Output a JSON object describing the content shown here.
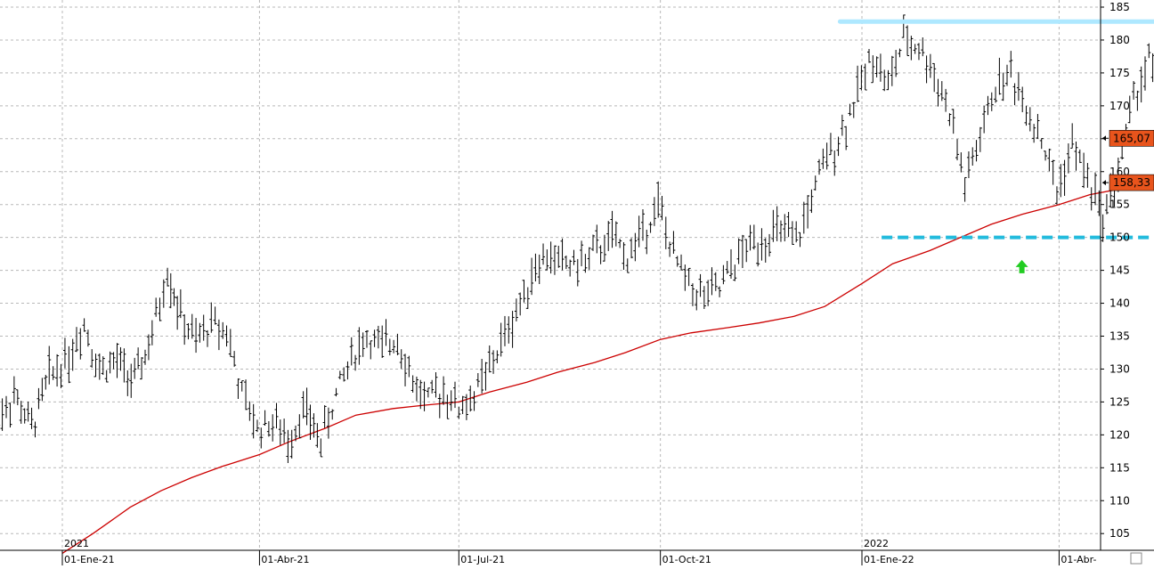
{
  "chart_data": {
    "type": "line",
    "subtype": "ohlc-bars-with-moving-average",
    "ylim": [
      102,
      186
    ],
    "y_ticks": [
      105,
      110,
      115,
      120,
      125,
      130,
      135,
      140,
      145,
      150,
      155,
      160,
      165,
      170,
      175,
      180,
      185
    ],
    "x_ticks": [
      {
        "label": "01-Ene-21",
        "date": "2021-01-01"
      },
      {
        "label": "01-Abr-21",
        "date": "2021-04-01"
      },
      {
        "label": "01-Jul-21",
        "date": "2021-07-01"
      },
      {
        "label": "01-Oct-21",
        "date": "2021-10-01"
      },
      {
        "label": "01-Ene-22",
        "date": "2022-01-01"
      },
      {
        "label": "01-Abr-",
        "date": "2022-04-01"
      }
    ],
    "year_labels": [
      {
        "label": "2021",
        "date": "2021-01-01"
      },
      {
        "label": "2022",
        "date": "2022-01-01"
      }
    ],
    "grid": true,
    "price_series": {
      "color": "#000000",
      "points": [
        [
          "2020-12-01",
          122
        ],
        [
          "2020-12-10",
          126
        ],
        [
          "2020-12-18",
          121
        ],
        [
          "2020-12-26",
          129
        ],
        [
          "2021-01-04",
          132
        ],
        [
          "2021-01-11",
          137
        ],
        [
          "2021-01-18",
          130
        ],
        [
          "2021-01-26",
          131
        ],
        [
          "2021-02-03",
          128
        ],
        [
          "2021-02-11",
          135
        ],
        [
          "2021-02-18",
          145
        ],
        [
          "2021-02-24",
          138
        ],
        [
          "2021-03-03",
          134
        ],
        [
          "2021-03-10",
          137
        ],
        [
          "2021-03-17",
          136
        ],
        [
          "2021-03-24",
          126
        ],
        [
          "2021-03-31",
          121
        ],
        [
          "2021-04-07",
          122
        ],
        [
          "2021-04-14",
          119
        ],
        [
          "2021-04-21",
          124
        ],
        [
          "2021-04-29",
          119
        ],
        [
          "2021-05-06",
          126
        ],
        [
          "2021-05-13",
          132
        ],
        [
          "2021-05-20",
          135
        ],
        [
          "2021-05-27",
          133
        ],
        [
          "2021-06-03",
          135
        ],
        [
          "2021-06-10",
          128
        ],
        [
          "2021-06-17",
          125
        ],
        [
          "2021-06-24",
          127
        ],
        [
          "2021-07-01",
          124
        ],
        [
          "2021-07-08",
          126
        ],
        [
          "2021-07-15",
          130
        ],
        [
          "2021-07-22",
          135
        ],
        [
          "2021-07-29",
          140
        ],
        [
          "2021-08-05",
          146
        ],
        [
          "2021-08-12",
          147
        ],
        [
          "2021-08-19",
          146
        ],
        [
          "2021-08-26",
          146
        ],
        [
          "2021-09-02",
          148
        ],
        [
          "2021-09-09",
          150
        ],
        [
          "2021-09-16",
          147
        ],
        [
          "2021-09-23",
          151
        ],
        [
          "2021-09-30",
          155
        ],
        [
          "2021-10-07",
          147
        ],
        [
          "2021-10-14",
          143
        ],
        [
          "2021-10-21",
          141
        ],
        [
          "2021-10-28",
          142
        ],
        [
          "2021-11-04",
          146
        ],
        [
          "2021-11-11",
          149
        ],
        [
          "2021-11-18",
          150
        ],
        [
          "2021-11-25",
          151
        ],
        [
          "2021-12-02",
          149
        ],
        [
          "2021-12-09",
          156
        ],
        [
          "2021-12-16",
          162
        ],
        [
          "2021-12-23",
          166
        ],
        [
          "2021-12-30",
          172
        ],
        [
          "2022-01-06",
          178
        ],
        [
          "2022-01-13",
          173
        ],
        [
          "2022-01-20",
          180
        ],
        [
          "2022-01-27",
          179
        ],
        [
          "2022-02-03",
          175
        ],
        [
          "2022-02-10",
          169
        ],
        [
          "2022-02-17",
          158
        ],
        [
          "2022-02-24",
          165
        ],
        [
          "2022-03-03",
          173
        ],
        [
          "2022-03-10",
          175
        ],
        [
          "2022-03-17",
          170
        ],
        [
          "2022-03-24",
          165
        ],
        [
          "2022-03-31",
          157
        ],
        [
          "2022-04-07",
          164
        ],
        [
          "2022-04-14",
          159
        ],
        [
          "2022-04-21",
          153
        ],
        [
          "2022-04-28",
          160
        ],
        [
          "2022-05-05",
          171
        ],
        [
          "2022-05-12",
          177
        ],
        [
          "2022-05-19",
          171
        ],
        [
          "2022-05-26",
          165.07
        ]
      ]
    },
    "moving_average": {
      "color": "#cc0000",
      "points": [
        [
          "2021-01-01",
          102
        ],
        [
          "2021-01-15",
          105
        ],
        [
          "2021-02-01",
          109
        ],
        [
          "2021-02-15",
          111.5
        ],
        [
          "2021-03-01",
          113.5
        ],
        [
          "2021-03-15",
          115.2
        ],
        [
          "2021-04-01",
          117
        ],
        [
          "2021-04-15",
          119
        ],
        [
          "2021-05-01",
          121
        ],
        [
          "2021-05-15",
          123
        ],
        [
          "2021-06-01",
          124
        ],
        [
          "2021-06-15",
          124.5
        ],
        [
          "2021-07-01",
          125
        ],
        [
          "2021-07-15",
          126.5
        ],
        [
          "2021-08-01",
          128
        ],
        [
          "2021-08-15",
          129.5
        ],
        [
          "2021-09-01",
          131
        ],
        [
          "2021-09-15",
          132.5
        ],
        [
          "2021-10-01",
          134.5
        ],
        [
          "2021-10-15",
          135.5
        ],
        [
          "2021-11-01",
          136.3
        ],
        [
          "2021-11-15",
          137
        ],
        [
          "2021-12-01",
          138
        ],
        [
          "2021-12-15",
          139.5
        ],
        [
          "2022-01-01",
          143
        ],
        [
          "2022-01-15",
          146
        ],
        [
          "2022-02-01",
          148
        ],
        [
          "2022-02-15",
          150
        ],
        [
          "2022-03-01",
          152
        ],
        [
          "2022-03-15",
          153.5
        ],
        [
          "2022-04-01",
          155
        ],
        [
          "2022-04-15",
          156.5
        ],
        [
          "2022-05-01",
          157.5
        ],
        [
          "2022-05-20",
          158.33
        ]
      ]
    },
    "resistance_line": {
      "value": 182.8,
      "from": "2021-12-22",
      "to": "2022-05-30",
      "color": "#aee8ff",
      "style": "solid"
    },
    "support_line": {
      "value": 150,
      "from": "2022-01-10",
      "to": "2022-05-30",
      "color": "#22bbdd",
      "style": "dashed"
    },
    "arrow_marker": {
      "date": "2022-03-15",
      "value": 145.5,
      "color": "#22cc22",
      "direction": "up"
    },
    "price_labels": [
      {
        "text": "165,07",
        "value": 165.07,
        "color": "#e8541c"
      },
      {
        "text": "158,33",
        "value": 158.33,
        "color": "#e8541c"
      }
    ]
  }
}
